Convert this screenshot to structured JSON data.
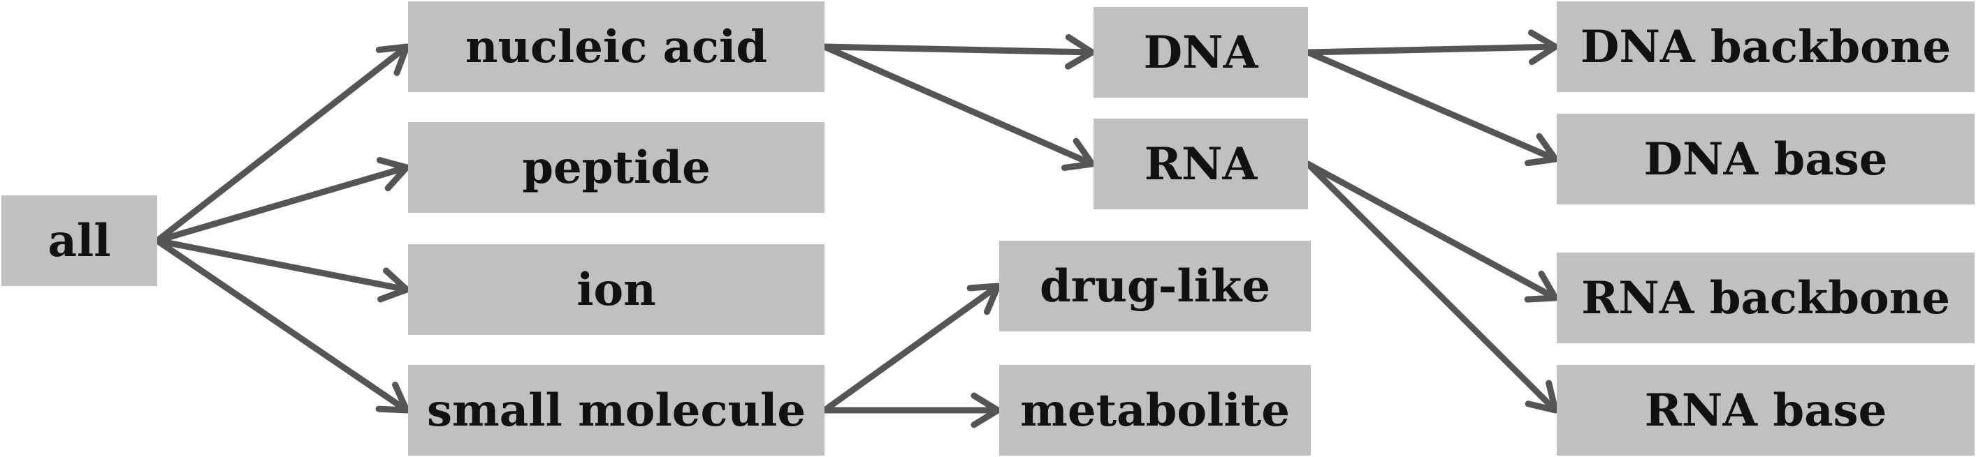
{
  "diagram": {
    "colors": {
      "node_fill": "#c0c0c0",
      "arrow": "#555555",
      "text": "#111111"
    },
    "nodes": {
      "all": "all",
      "nucleic_acid": "nucleic acid",
      "peptide": "peptide",
      "ion": "ion",
      "small_molecule": "small molecule",
      "dna": "DNA",
      "rna": "RNA",
      "drug_like": "drug-like",
      "metabolite": "metabolite",
      "dna_backbone": "DNA backbone",
      "dna_base": "DNA base",
      "rna_backbone": "RNA backbone",
      "rna_base": "RNA base"
    },
    "edges": [
      [
        "all",
        "nucleic_acid"
      ],
      [
        "all",
        "peptide"
      ],
      [
        "all",
        "ion"
      ],
      [
        "all",
        "small_molecule"
      ],
      [
        "nucleic_acid",
        "dna"
      ],
      [
        "nucleic_acid",
        "rna"
      ],
      [
        "small_molecule",
        "drug_like"
      ],
      [
        "small_molecule",
        "metabolite"
      ],
      [
        "dna",
        "dna_backbone"
      ],
      [
        "dna",
        "dna_base"
      ],
      [
        "rna",
        "rna_backbone"
      ],
      [
        "rna",
        "rna_base"
      ]
    ]
  }
}
